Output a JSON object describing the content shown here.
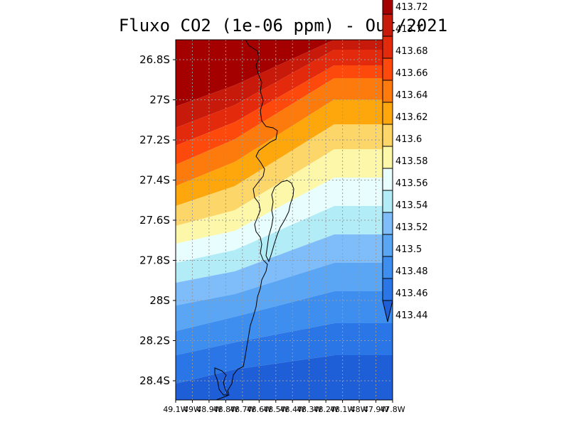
{
  "title": "Fluxo CO2 (1e-06 ppm) - Out/2021",
  "y_ticks": [
    "26.8S",
    "27S",
    "27.2S",
    "27.4S",
    "27.6S",
    "27.8S",
    "28S",
    "28.2S",
    "28.4S"
  ],
  "x_ticks": [
    "49.1W",
    "49W",
    "48.9W",
    "48.8W",
    "48.7W",
    "48.6W",
    "48.5W",
    "48.4W",
    "48.3W",
    "48.2W",
    "48.1W",
    "48W",
    "47.9W",
    "47.8W"
  ],
  "colorbar": {
    "levels": [
      "413.72",
      "413.7",
      "413.68",
      "413.66",
      "413.64",
      "413.62",
      "413.6",
      "413.58",
      "413.56",
      "413.54",
      "413.52",
      "413.5",
      "413.48",
      "413.46",
      "413.44"
    ],
    "colors": [
      "#a50000",
      "#c81a0a",
      "#e32a0c",
      "#fd4a0c",
      "#fd7a0c",
      "#fda70c",
      "#fdd66a",
      "#fdf7aa",
      "#e8fdfd",
      "#b2ecf7",
      "#7ebcfa",
      "#5aa6f4",
      "#3d8eee",
      "#2b76e6",
      "#1e5fd8"
    ]
  },
  "chart_data": {
    "type": "filled-contour-map",
    "title": "Fluxo CO2 (1e-06 ppm) - Out/2021",
    "x_range": [
      "49.1W",
      "47.8W"
    ],
    "y_range": [
      "28.5S",
      "26.7S"
    ],
    "levels": [
      413.44,
      413.46,
      413.48,
      413.5,
      413.52,
      413.54,
      413.56,
      413.58,
      413.6,
      413.62,
      413.64,
      413.66,
      413.68,
      413.7,
      413.72
    ],
    "grid": true,
    "coastline": true,
    "colorbar": "right"
  }
}
